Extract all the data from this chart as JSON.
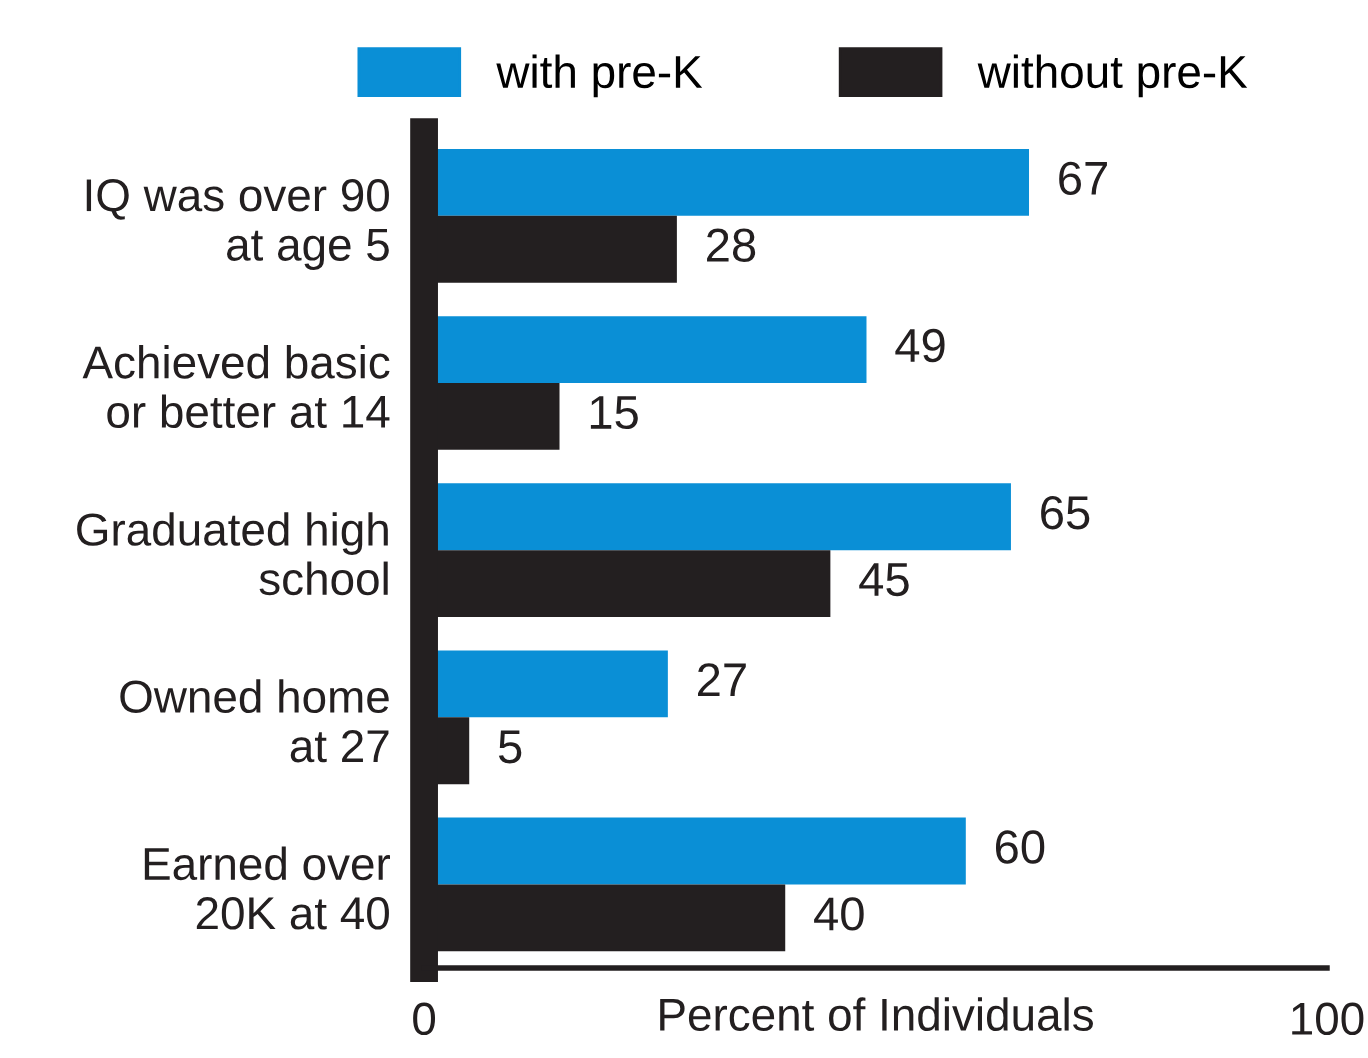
{
  "chart_data": {
    "type": "bar",
    "orientation": "horizontal",
    "xlabel": "Percent of Individuals",
    "categories": [
      "IQ was over 90\nat age 5",
      "Achieved basic\nor better at 14",
      "Graduated high\nschool",
      "Owned home\nat 27",
      "Earned over\n20K at 40"
    ],
    "series": [
      {
        "name": "with pre-K",
        "color": "#0a8fd6",
        "values": [
          67,
          49,
          65,
          27,
          60
        ]
      },
      {
        "name": "without pre-K",
        "color": "#231f20",
        "values": [
          28,
          15,
          45,
          5,
          40
        ]
      }
    ],
    "xlim": [
      0,
      100
    ],
    "xticks": [
      0,
      100
    ],
    "data_labels": true,
    "legend": "top",
    "grid": false
  }
}
